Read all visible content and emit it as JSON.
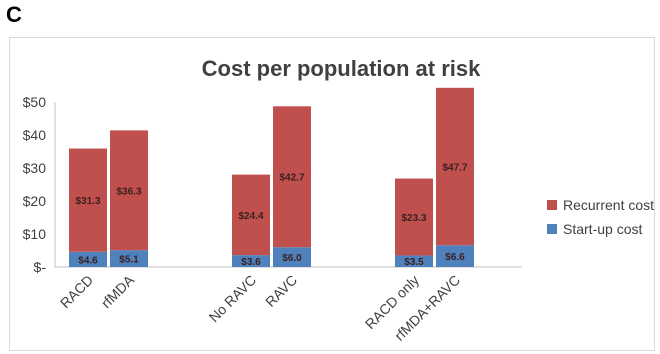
{
  "panel_label": "C",
  "chart_data": {
    "type": "bar",
    "stacked": true,
    "title": "Cost per population at risk",
    "categories": [
      "RACD",
      "rfMDA",
      "No RAVC",
      "RAVC",
      "RACD only",
      "rfMDA+RAVC"
    ],
    "groups": [
      [
        0,
        1
      ],
      [
        2,
        3
      ],
      [
        4,
        5
      ]
    ],
    "series": [
      {
        "name": "Start-up cost",
        "color": "#4f81bd",
        "values": [
          4.6,
          5.1,
          3.6,
          6.0,
          3.5,
          6.6
        ],
        "labels": [
          "$4.6",
          "$5.1",
          "$3.6",
          "$6.0",
          "$3.5",
          "$6.6"
        ]
      },
      {
        "name": "Recurrent cost",
        "color": "#c0504d",
        "values": [
          31.3,
          36.3,
          24.4,
          42.7,
          23.3,
          47.7
        ],
        "labels": [
          "$31.3",
          "$36.3",
          "$24.4",
          "$42.7",
          "$23.3",
          "$47.7"
        ]
      }
    ],
    "ylim": [
      0,
      50
    ],
    "yticks": [
      0,
      10,
      20,
      30,
      40,
      50
    ],
    "ytick_labels": [
      "$-",
      "$10",
      "$20",
      "$30",
      "$40",
      "$50"
    ],
    "grid": false,
    "legend_position": "right",
    "legend_order": [
      "Recurrent cost",
      "Start-up cost"
    ]
  }
}
